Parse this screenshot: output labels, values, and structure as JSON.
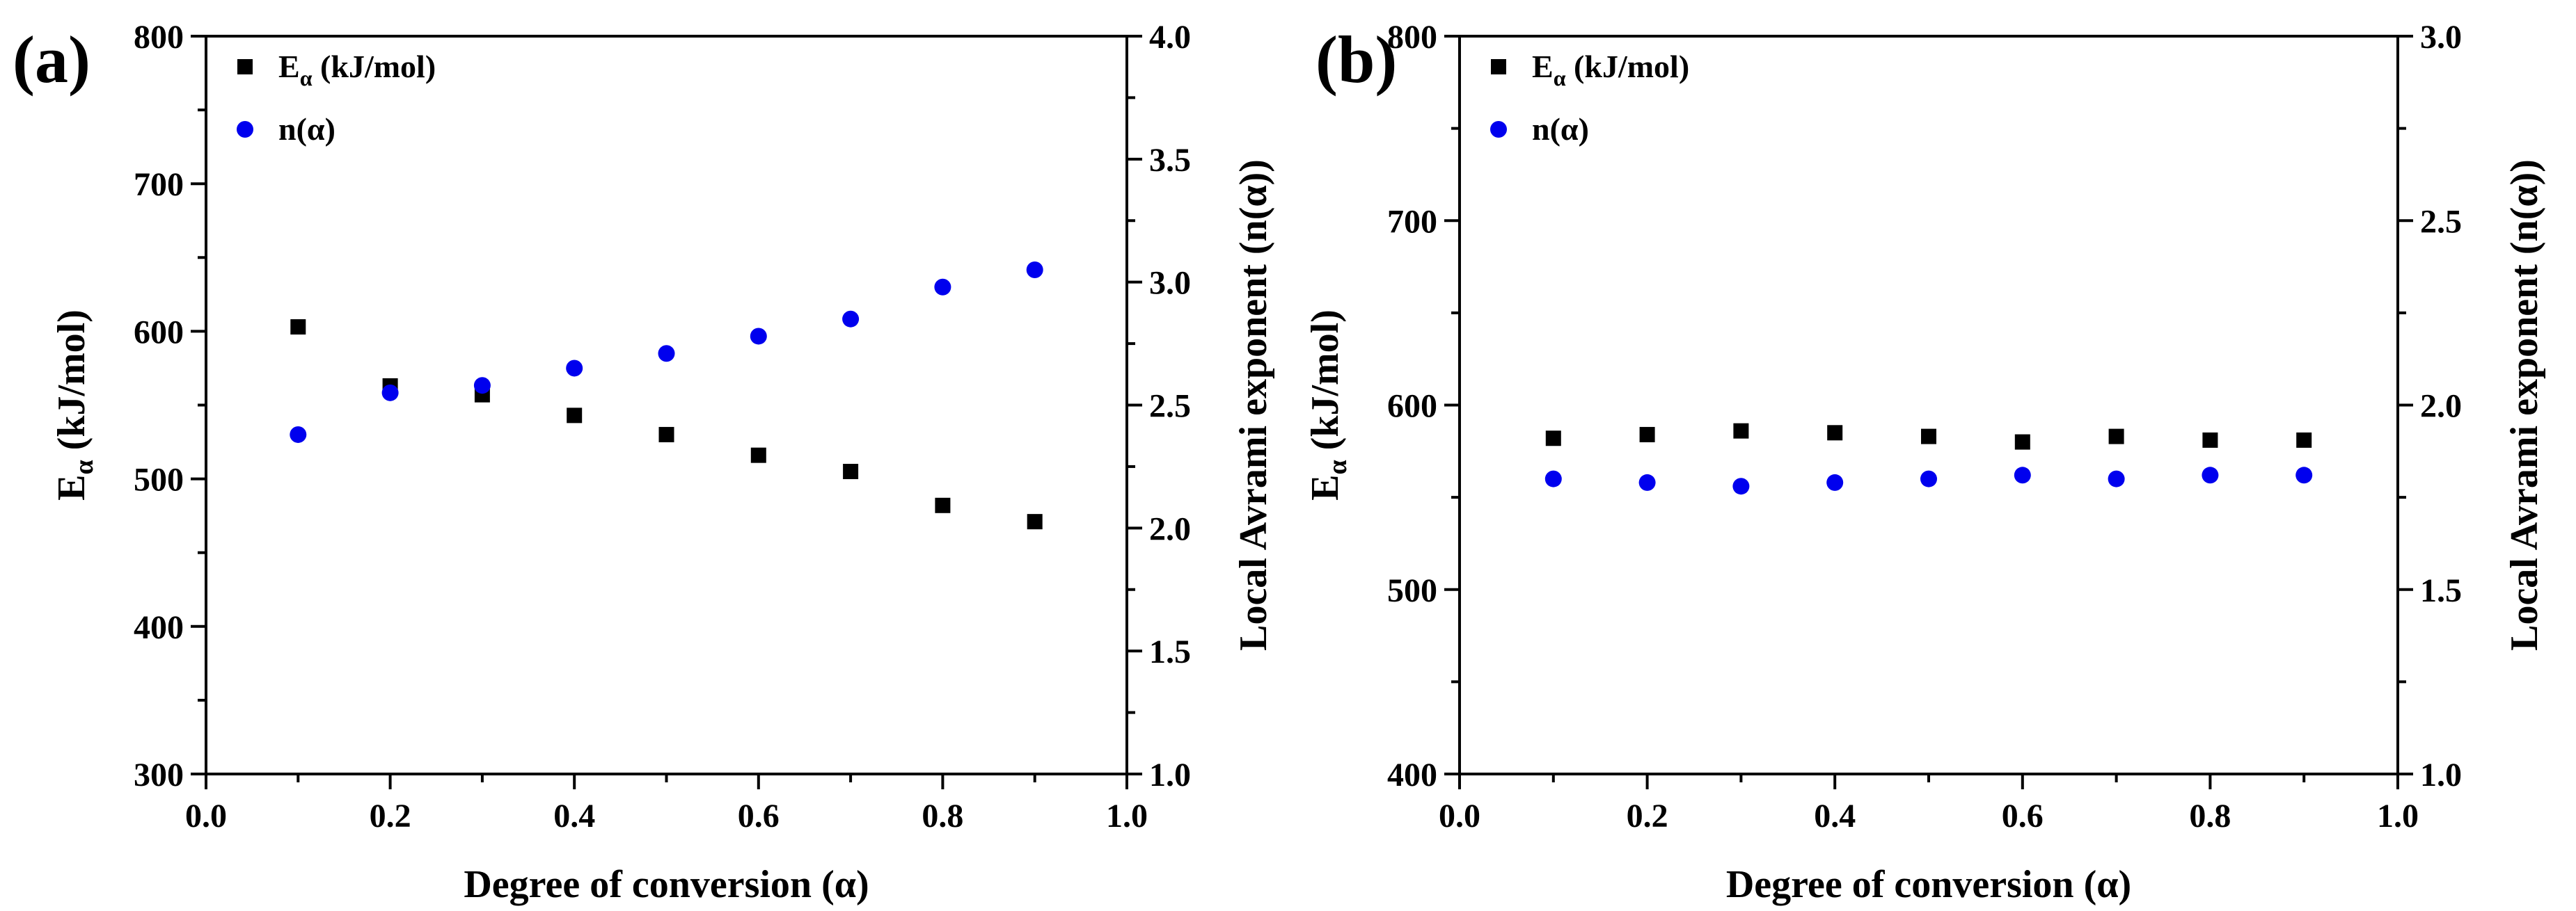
{
  "chart_data": [
    {
      "type": "scatter",
      "panel_label": "(a)",
      "xlabel": "Degree of conversion (α)",
      "ylabel_main": "E",
      "ylabel_sub": "α",
      "ylabel_rest": " (kJ/mol)",
      "y2label": "Local Avrami exponent (n(α))",
      "xlim": [
        0.0,
        1.0
      ],
      "ylim": [
        300,
        800
      ],
      "y2lim": [
        1.0,
        4.0
      ],
      "x_ticks": [
        "0.0",
        "0.2",
        "0.4",
        "0.6",
        "0.8",
        "1.0"
      ],
      "y_ticks": [
        "300",
        "400",
        "500",
        "600",
        "700",
        "800"
      ],
      "y2_ticks": [
        "1.0",
        "1.5",
        "2.0",
        "2.5",
        "3.0",
        "3.5",
        "4.0"
      ],
      "legend_position": "top-left",
      "series": [
        {
          "name": "Eα (kJ/mol)",
          "legend_main": "E",
          "legend_sub": "α",
          "legend_rest": " (kJ/mol)",
          "axis": "left",
          "marker": "square",
          "color": "#000000",
          "x": [
            0.1,
            0.2,
            0.3,
            0.4,
            0.5,
            0.6,
            0.7,
            0.8,
            0.9
          ],
          "y": [
            603,
            563,
            557,
            543,
            530,
            516,
            505,
            482,
            471
          ]
        },
        {
          "name": "n(α)",
          "legend_main": "n(α)",
          "legend_sub": "",
          "legend_rest": "",
          "axis": "right",
          "marker": "circle",
          "color": "#0000ee",
          "x": [
            0.1,
            0.2,
            0.3,
            0.4,
            0.5,
            0.6,
            0.7,
            0.8,
            0.9
          ],
          "y": [
            2.38,
            2.55,
            2.58,
            2.65,
            2.71,
            2.78,
            2.85,
            2.98,
            3.05
          ]
        }
      ]
    },
    {
      "type": "scatter",
      "panel_label": "(b)",
      "xlabel": "Degree of conversion (α)",
      "ylabel_main": "E",
      "ylabel_sub": "α",
      "ylabel_rest": " (kJ/mol)",
      "y2label": "Local Avrami exponent (n(α))",
      "xlim": [
        0.0,
        1.0
      ],
      "ylim": [
        400,
        800
      ],
      "y2lim": [
        1.0,
        3.0
      ],
      "x_ticks": [
        "0.0",
        "0.2",
        "0.4",
        "0.6",
        "0.8",
        "1.0"
      ],
      "y_ticks": [
        "400",
        "500",
        "600",
        "700",
        "800"
      ],
      "y2_ticks": [
        "1.0",
        "1.5",
        "2.0",
        "2.5",
        "3.0"
      ],
      "legend_position": "top-left",
      "series": [
        {
          "name": "Eα (kJ/mol)",
          "legend_main": "E",
          "legend_sub": "α",
          "legend_rest": " (kJ/mol)",
          "axis": "left",
          "marker": "square",
          "color": "#000000",
          "x": [
            0.1,
            0.2,
            0.3,
            0.4,
            0.5,
            0.6,
            0.7,
            0.8,
            0.9
          ],
          "y": [
            582,
            584,
            586,
            585,
            583,
            580,
            583,
            581,
            581
          ]
        },
        {
          "name": "n(α)",
          "legend_main": "n(α)",
          "legend_sub": "",
          "legend_rest": "",
          "axis": "right",
          "marker": "circle",
          "color": "#0000ee",
          "x": [
            0.1,
            0.2,
            0.3,
            0.4,
            0.5,
            0.6,
            0.7,
            0.8,
            0.9
          ],
          "y": [
            1.8,
            1.79,
            1.78,
            1.79,
            1.8,
            1.81,
            1.8,
            1.81,
            1.81
          ]
        }
      ]
    }
  ]
}
